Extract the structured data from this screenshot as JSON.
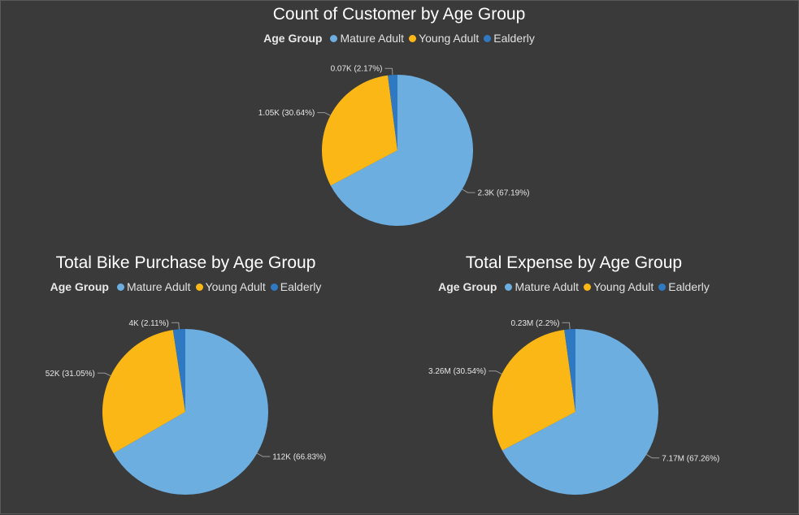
{
  "legend_title": "Age Group",
  "colors": {
    "Mature Adult": "#6caee0",
    "Young Adult": "#fbb716",
    "Ealderly": "#2f79c3"
  },
  "chart_data": [
    {
      "type": "pie",
      "title": "Count of Customer by Age Group",
      "labels": [
        "Mature Adult",
        "Young Adult",
        "Ealderly"
      ],
      "values": [
        2300,
        1050,
        70
      ],
      "percents": [
        67.19,
        30.64,
        2.17
      ],
      "data_labels": [
        "2.3K (67.19%)",
        "1.05K (30.64%)",
        "0.07K (2.17%)"
      ],
      "legend": "top-center"
    },
    {
      "type": "pie",
      "title": "Total Bike Purchase by Age Group",
      "labels": [
        "Mature Adult",
        "Young Adult",
        "Ealderly"
      ],
      "values": [
        112000,
        52000,
        4000
      ],
      "percents": [
        66.83,
        31.05,
        2.11
      ],
      "data_labels": [
        "112K (66.83%)",
        "52K (31.05%)",
        "4K (2.11%)"
      ],
      "legend": "top-center"
    },
    {
      "type": "pie",
      "title": "Total Expense by Age Group",
      "labels": [
        "Mature Adult",
        "Young Adult",
        "Ealderly"
      ],
      "values": [
        7170000,
        3260000,
        230000
      ],
      "percents": [
        67.26,
        30.54,
        2.2
      ],
      "data_labels": [
        "7.17M (67.26%)",
        "3.26M (30.54%)",
        "0.23M (2.2%)"
      ],
      "legend": "top-center"
    }
  ]
}
